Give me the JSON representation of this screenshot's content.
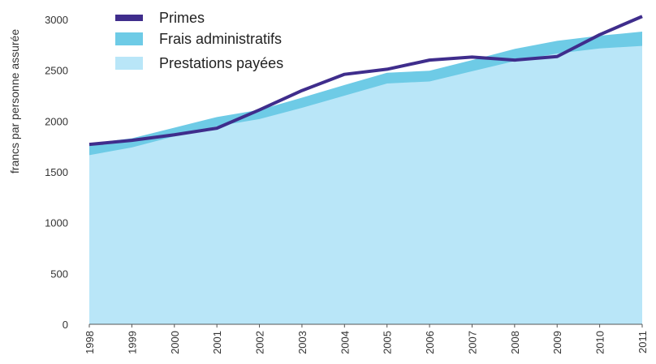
{
  "chart_data": {
    "type": "area",
    "title": "",
    "xlabel": "",
    "ylabel": "francs par personne assurée",
    "ylim": [
      0,
      3000
    ],
    "yticks": [
      0,
      500,
      1000,
      1500,
      2000,
      2500,
      3000
    ],
    "categories": [
      "1998",
      "1999",
      "2000",
      "2001",
      "2002",
      "2003",
      "2004",
      "2005",
      "2006",
      "2007",
      "2008",
      "2009",
      "2010",
      "2011"
    ],
    "series": [
      {
        "name": "Primes",
        "kind": "line",
        "color": "#3f2d8c",
        "values": [
          1770,
          1810,
          1865,
          1930,
          2110,
          2300,
          2460,
          2510,
          2600,
          2630,
          2600,
          2635,
          2850,
          3030
        ]
      },
      {
        "name": "Frais administratifs",
        "kind": "area-band",
        "color": "#6ecbe6",
        "values": [
          1780,
          1830,
          1935,
          2040,
          2110,
          2230,
          2355,
          2475,
          2495,
          2600,
          2710,
          2790,
          2840,
          2880
        ]
      },
      {
        "name": "Prestations payées",
        "kind": "area",
        "color": "#b9e6f8",
        "values": [
          1665,
          1740,
          1850,
          1950,
          2020,
          2130,
          2250,
          2370,
          2390,
          2490,
          2590,
          2665,
          2715,
          2740
        ]
      }
    ],
    "legend_position": "top-left",
    "grid": false
  }
}
